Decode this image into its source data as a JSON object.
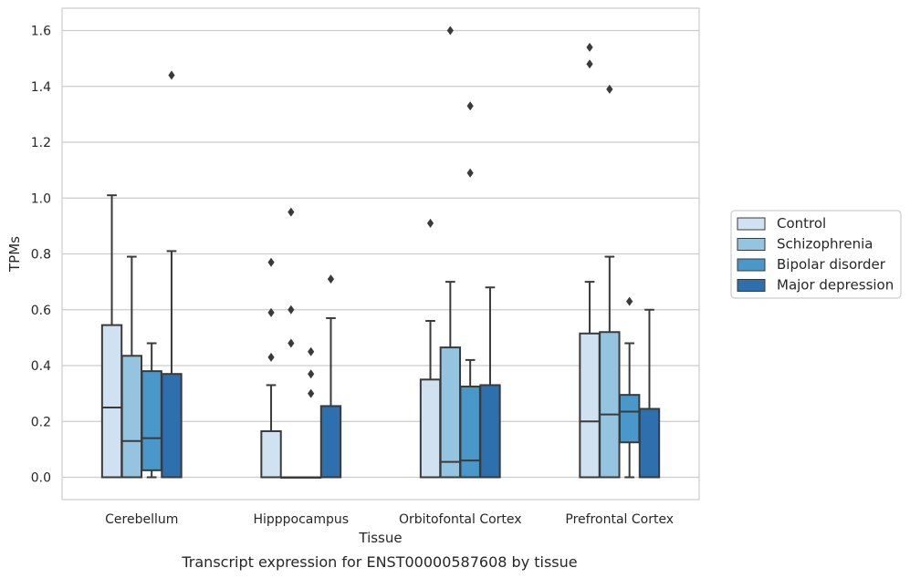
{
  "caption": "Transcript expression for ENST00000587608 by tissue",
  "chart_data": {
    "type": "box",
    "xlabel": "Tissue",
    "ylabel": "TPMs",
    "ylim": [
      -0.08,
      1.68
    ],
    "yticks": [
      0.0,
      0.2,
      0.4,
      0.6,
      0.8,
      1.0,
      1.2,
      1.4,
      1.6
    ],
    "ytick_labels": [
      "0.0",
      "0.2",
      "0.4",
      "0.6",
      "0.8",
      "1.0",
      "1.2",
      "1.4",
      "1.6"
    ],
    "grid": "horizontal",
    "legend_position": "right",
    "categories": [
      "Cerebellum",
      "Hipppocampus",
      "Orbitofontal Cortex",
      "Prefrontal Cortex"
    ],
    "series": [
      {
        "name": "Control",
        "color": "#d0e1f2",
        "boxes": [
          {
            "q1": 0.0,
            "median": 0.25,
            "q3": 0.545,
            "whisker_low": 0.0,
            "whisker_high": 1.01,
            "outliers": []
          },
          {
            "q1": 0.0,
            "median": 0.0,
            "q3": 0.165,
            "whisker_low": 0.0,
            "whisker_high": 0.33,
            "outliers": [
              0.43,
              0.59,
              0.77
            ]
          },
          {
            "q1": 0.0,
            "median": 0.0,
            "q3": 0.35,
            "whisker_low": 0.0,
            "whisker_high": 0.56,
            "outliers": [
              0.91
            ]
          },
          {
            "q1": 0.0,
            "median": 0.2,
            "q3": 0.515,
            "whisker_low": 0.0,
            "whisker_high": 0.7,
            "outliers": [
              1.48,
              1.54
            ]
          }
        ]
      },
      {
        "name": "Schizophrenia",
        "color": "#94c4df",
        "boxes": [
          {
            "q1": 0.0,
            "median": 0.13,
            "q3": 0.435,
            "whisker_low": 0.0,
            "whisker_high": 0.79,
            "outliers": []
          },
          {
            "q1": 0.0,
            "median": 0.0,
            "q3": 0.0,
            "whisker_low": 0.0,
            "whisker_high": 0.0,
            "outliers": [
              0.48,
              0.6,
              0.95
            ]
          },
          {
            "q1": 0.0,
            "median": 0.055,
            "q3": 0.465,
            "whisker_low": 0.0,
            "whisker_high": 0.7,
            "outliers": [
              1.6
            ]
          },
          {
            "q1": 0.0,
            "median": 0.225,
            "q3": 0.52,
            "whisker_low": 0.0,
            "whisker_high": 0.79,
            "outliers": [
              1.39
            ]
          }
        ]
      },
      {
        "name": "Bipolar disorder",
        "color": "#4a98c9",
        "boxes": [
          {
            "q1": 0.025,
            "median": 0.14,
            "q3": 0.38,
            "whisker_low": 0.0,
            "whisker_high": 0.48,
            "outliers": []
          },
          {
            "q1": 0.0,
            "median": 0.0,
            "q3": 0.0,
            "whisker_low": 0.0,
            "whisker_high": 0.0,
            "outliers": [
              0.3,
              0.37,
              0.45
            ]
          },
          {
            "q1": 0.0,
            "median": 0.06,
            "q3": 0.325,
            "whisker_low": 0.0,
            "whisker_high": 0.42,
            "outliers": [
              1.09,
              1.33
            ]
          },
          {
            "q1": 0.125,
            "median": 0.235,
            "q3": 0.295,
            "whisker_low": 0.0,
            "whisker_high": 0.48,
            "outliers": [
              0.63
            ]
          }
        ]
      },
      {
        "name": "Major depression",
        "color": "#2e6fad",
        "boxes": [
          {
            "q1": 0.0,
            "median": 0.0,
            "q3": 0.37,
            "whisker_low": 0.0,
            "whisker_high": 0.81,
            "outliers": [
              1.44
            ]
          },
          {
            "q1": 0.0,
            "median": 0.0,
            "q3": 0.255,
            "whisker_low": 0.0,
            "whisker_high": 0.57,
            "outliers": [
              0.71
            ]
          },
          {
            "q1": 0.0,
            "median": 0.0,
            "q3": 0.33,
            "whisker_low": 0.0,
            "whisker_high": 0.68,
            "outliers": []
          },
          {
            "q1": 0.0,
            "median": 0.0,
            "q3": 0.245,
            "whisker_low": 0.0,
            "whisker_high": 0.6,
            "outliers": []
          }
        ]
      }
    ]
  }
}
